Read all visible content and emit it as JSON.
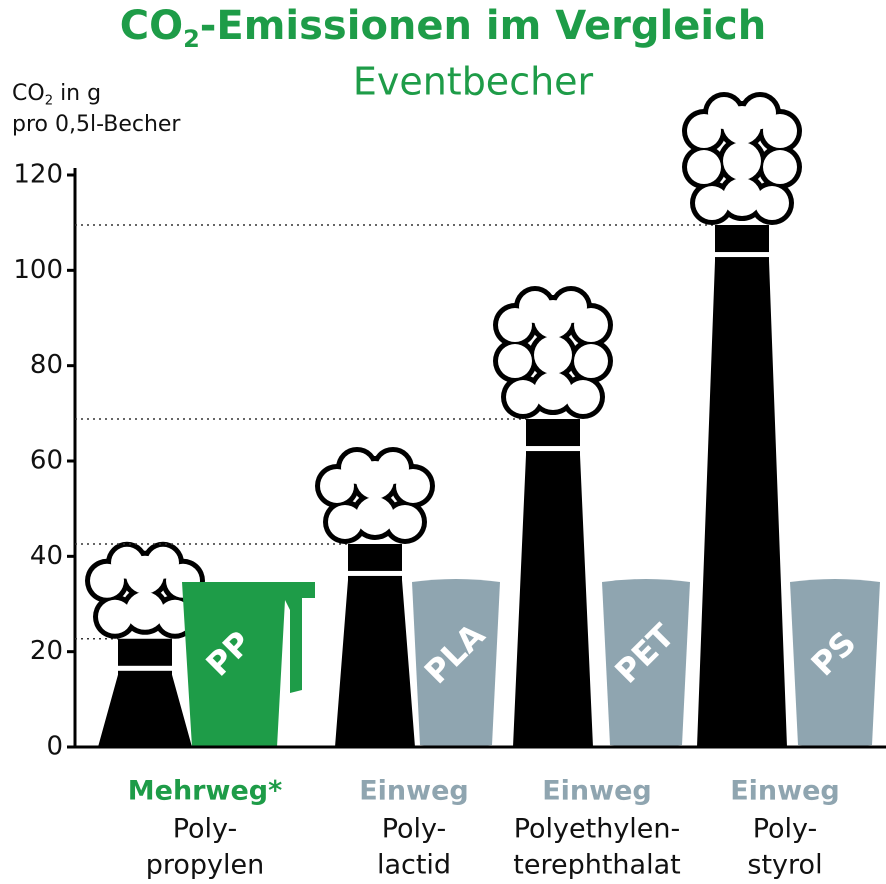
{
  "chart_data": {
    "type": "bar",
    "title": {
      "main": "CO",
      "sub": "2",
      "rest": "-Emissionen im Vergleich"
    },
    "subtitle": "Eventbecher",
    "title_color": "#1e9c48",
    "y_label": {
      "line1": {
        "main": "CO",
        "sub": "2",
        "rest": " in g"
      },
      "line2": "pro 0,5l-Becher"
    },
    "ylim": [
      0,
      120
    ],
    "yticks": [
      0,
      20,
      40,
      60,
      80,
      100,
      120
    ],
    "categories": [
      "Mehrweg*",
      "Einweg",
      "Einweg",
      "Einweg"
    ],
    "names": [
      [
        "Poly-",
        "propylen"
      ],
      [
        "Poly-",
        "lactid"
      ],
      [
        "Polyethylen-",
        "terephthalat"
      ],
      [
        "Poly-",
        "styrol"
      ]
    ],
    "materials": [
      "PP",
      "PLA",
      "PET",
      "PS"
    ],
    "cup_colors": [
      "#1e9c48",
      "#8fa5b0",
      "#8fa5b0",
      "#8fa5b0"
    ],
    "values": [
      22.7,
      42.6,
      68.8,
      109.5
    ],
    "color": "#000000"
  }
}
